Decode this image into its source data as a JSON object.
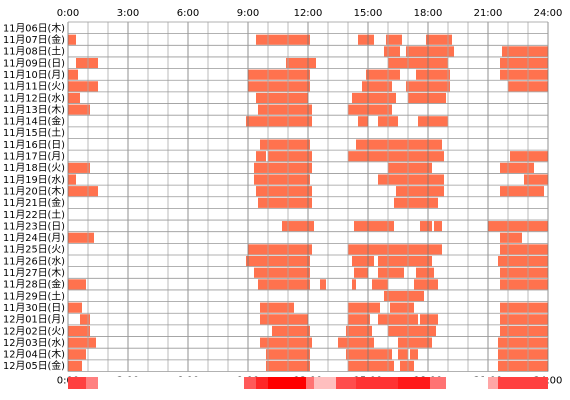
{
  "chart_data": {
    "type": "heatmap",
    "x_ticks": [
      "0:00",
      "3:00",
      "6:00",
      "9:00",
      "12:00",
      "15:00",
      "18:00",
      "21:00",
      "24:00"
    ],
    "rows": [
      {
        "label": "11月06日(木)",
        "segments": []
      },
      {
        "label": "11月07日(金)",
        "segments": [
          [
            0.0,
            0.4
          ],
          [
            9.4,
            12.1
          ],
          [
            14.5,
            15.3
          ],
          [
            15.9,
            16.7
          ],
          [
            17.9,
            19.2
          ]
        ]
      },
      {
        "label": "11月08日(土)",
        "segments": [
          [
            15.8,
            16.6
          ],
          [
            16.9,
            19.3
          ],
          [
            21.7,
            24.0
          ]
        ]
      },
      {
        "label": "11月09日(日)",
        "segments": [
          [
            0.4,
            1.5
          ],
          [
            10.9,
            12.4
          ],
          [
            16.0,
            19.0
          ],
          [
            21.6,
            24.0
          ]
        ]
      },
      {
        "label": "11月10日(月)",
        "segments": [
          [
            0.0,
            0.5
          ],
          [
            9.0,
            12.1
          ],
          [
            14.9,
            16.6
          ],
          [
            17.4,
            19.1
          ],
          [
            21.6,
            24.0
          ]
        ]
      },
      {
        "label": "11月11日(火)",
        "segments": [
          [
            0.0,
            1.5
          ],
          [
            9.0,
            12.1
          ],
          [
            14.7,
            16.2
          ],
          [
            16.9,
            19.1
          ],
          [
            22.0,
            24.0
          ]
        ]
      },
      {
        "label": "11月12日(水)",
        "segments": [
          [
            0.0,
            0.6
          ],
          [
            9.4,
            12.0
          ],
          [
            14.2,
            16.4
          ],
          [
            17.0,
            18.9
          ]
        ]
      },
      {
        "label": "11月13日(木)",
        "segments": [
          [
            0.0,
            1.1
          ],
          [
            9.5,
            12.2
          ],
          [
            14.0,
            16.2
          ]
        ]
      },
      {
        "label": "11月14日(金)",
        "segments": [
          [
            8.9,
            12.2
          ],
          [
            14.5,
            15.0
          ],
          [
            15.5,
            16.5
          ],
          [
            17.5,
            19.0
          ]
        ]
      },
      {
        "label": "11月15日(土)",
        "segments": []
      },
      {
        "label": "11月16日(日)",
        "segments": [
          [
            9.6,
            12.1
          ],
          [
            14.4,
            18.7
          ]
        ]
      },
      {
        "label": "11月17日(月)",
        "segments": [
          [
            9.4,
            9.9
          ],
          [
            10.0,
            12.2
          ],
          [
            14.0,
            18.8
          ],
          [
            22.1,
            24.0
          ]
        ]
      },
      {
        "label": "11月18日(火)",
        "segments": [
          [
            0.0,
            1.1
          ],
          [
            9.3,
            12.2
          ],
          [
            16.0,
            18.2
          ],
          [
            21.6,
            23.3
          ]
        ]
      },
      {
        "label": "11月19日(水)",
        "segments": [
          [
            0.0,
            0.4
          ],
          [
            9.3,
            12.1
          ],
          [
            15.5,
            18.8
          ],
          [
            22.8,
            24.0
          ]
        ]
      },
      {
        "label": "11月20日(木)",
        "segments": [
          [
            0.0,
            1.5
          ],
          [
            9.4,
            12.2
          ],
          [
            16.4,
            18.8
          ],
          [
            21.6,
            23.8
          ]
        ]
      },
      {
        "label": "11月21日(金)",
        "segments": [
          [
            9.5,
            12.2
          ],
          [
            16.3,
            18.5
          ]
        ]
      },
      {
        "label": "11月22日(土)",
        "segments": []
      },
      {
        "label": "11月23日(日)",
        "segments": [
          [
            10.7,
            12.3
          ],
          [
            14.3,
            16.3
          ],
          [
            17.6,
            18.2
          ],
          [
            18.3,
            18.7
          ],
          [
            21.0,
            24.0
          ]
        ]
      },
      {
        "label": "11月24日(月)",
        "segments": [
          [
            0.0,
            1.3
          ],
          [
            21.6,
            22.7
          ]
        ]
      },
      {
        "label": "11月25日(火)",
        "segments": [
          [
            9.0,
            12.2
          ],
          [
            14.0,
            18.7
          ],
          [
            21.6,
            24.0
          ]
        ]
      },
      {
        "label": "11月26日(水)",
        "segments": [
          [
            8.9,
            12.1
          ],
          [
            14.2,
            15.3
          ],
          [
            15.5,
            18.2
          ],
          [
            21.5,
            24.0
          ]
        ]
      },
      {
        "label": "11月27日(木)",
        "segments": [
          [
            9.3,
            12.1
          ],
          [
            14.3,
            15.0
          ],
          [
            15.5,
            16.8
          ],
          [
            17.4,
            18.3
          ],
          [
            21.6,
            24.0
          ]
        ]
      },
      {
        "label": "11月28日(金)",
        "segments": [
          [
            0.0,
            0.9
          ],
          [
            9.5,
            12.1
          ],
          [
            12.6,
            12.9
          ],
          [
            14.2,
            14.4
          ],
          [
            15.2,
            16.0
          ],
          [
            17.3,
            18.5
          ],
          [
            21.6,
            24.0
          ]
        ]
      },
      {
        "label": "11月29日(土)",
        "segments": [
          [
            15.8,
            17.8
          ]
        ]
      },
      {
        "label": "11月30日(日)",
        "segments": [
          [
            0.0,
            0.7
          ],
          [
            9.6,
            11.3
          ],
          [
            14.0,
            15.6
          ],
          [
            16.1,
            17.3
          ],
          [
            21.6,
            24.0
          ]
        ]
      },
      {
        "label": "12月01日(月)",
        "segments": [
          [
            0.6,
            1.1
          ],
          [
            9.6,
            12.0
          ],
          [
            14.0,
            15.1
          ],
          [
            15.5,
            17.5
          ],
          [
            17.6,
            18.5
          ],
          [
            21.6,
            24.0
          ]
        ]
      },
      {
        "label": "12月02日(火)",
        "segments": [
          [
            0.0,
            1.1
          ],
          [
            10.2,
            12.1
          ],
          [
            13.9,
            15.2
          ],
          [
            16.0,
            18.4
          ],
          [
            21.6,
            24.0
          ]
        ]
      },
      {
        "label": "12月03日(水)",
        "segments": [
          [
            0.0,
            1.4
          ],
          [
            9.6,
            12.2
          ],
          [
            13.5,
            15.3
          ],
          [
            16.5,
            18.2
          ],
          [
            21.5,
            24.0
          ]
        ]
      },
      {
        "label": "12月04日(木)",
        "segments": [
          [
            0.0,
            0.9
          ],
          [
            9.9,
            12.1
          ],
          [
            13.9,
            16.2
          ],
          [
            16.5,
            17.0
          ],
          [
            17.1,
            17.5
          ],
          [
            21.5,
            24.0
          ]
        ]
      },
      {
        "label": "12月05日(金)",
        "segments": [
          [
            0.0,
            0.7
          ],
          [
            9.9,
            12.1
          ],
          [
            14.0,
            16.3
          ],
          [
            16.6,
            17.3
          ],
          [
            21.5,
            24.0
          ]
        ]
      }
    ],
    "summary_bar": [
      [
        0.0,
        0.9,
        0.75
      ],
      [
        0.9,
        1.5,
        0.5
      ],
      [
        1.5,
        8.8,
        0.0
      ],
      [
        8.8,
        9.4,
        0.65
      ],
      [
        9.4,
        10.0,
        0.85
      ],
      [
        10.0,
        11.9,
        1.0
      ],
      [
        11.9,
        12.3,
        0.55
      ],
      [
        12.3,
        13.4,
        0.25
      ],
      [
        13.4,
        14.4,
        0.7
      ],
      [
        14.4,
        16.5,
        0.8
      ],
      [
        16.5,
        18.1,
        0.9
      ],
      [
        18.1,
        18.9,
        0.55
      ],
      [
        18.9,
        21.0,
        0.0
      ],
      [
        21.0,
        21.5,
        0.35
      ],
      [
        21.5,
        24.0,
        0.75
      ]
    ]
  }
}
